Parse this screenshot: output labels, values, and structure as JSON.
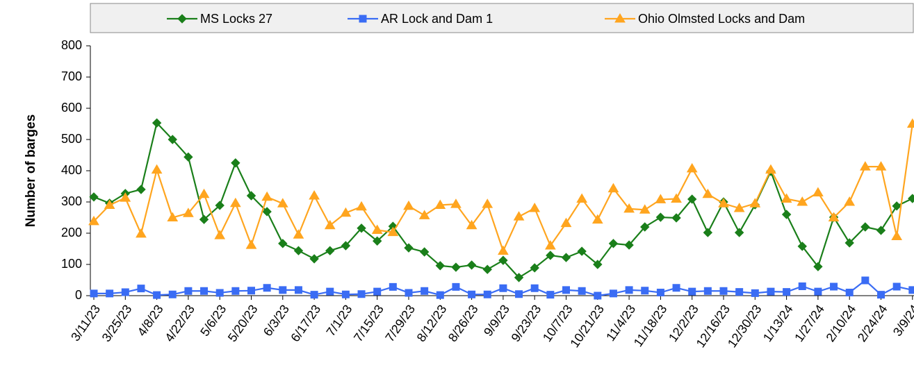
{
  "chart_data": {
    "type": "line",
    "y_label": "Number of barges",
    "categories": [
      "3/11/23",
      null,
      "3/25/23",
      null,
      "4/8/23",
      null,
      "4/22/23",
      null,
      "5/6/23",
      null,
      "5/20/23",
      null,
      "6/3/23",
      null,
      "6/17/23",
      null,
      "7/1/23",
      null,
      "7/15/23",
      null,
      "7/29/23",
      null,
      "8/12/23",
      null,
      "8/26/23",
      null,
      "9/9/23",
      null,
      "9/23/23",
      null,
      "10/7/23",
      null,
      "10/21/23",
      null,
      "11/4/23",
      null,
      "11/18/23",
      null,
      "12/2/23",
      null,
      "12/16/23",
      null,
      "12/30/23",
      null,
      "1/13/24",
      null,
      "1/27/24",
      null,
      "2/10/24",
      null,
      "2/24/24",
      null,
      "3/9/24"
    ],
    "series": [
      {
        "name": "MS Locks 27",
        "color": "#1a7f1a",
        "marker": "diamond",
        "values": [
          316,
          296,
          327,
          340,
          553,
          500,
          444,
          244,
          289,
          425,
          320,
          269,
          167,
          144,
          118,
          144,
          160,
          216,
          175,
          222,
          153,
          140,
          96,
          91,
          98,
          84,
          113,
          58,
          89,
          129,
          122,
          142,
          100,
          167,
          162,
          220,
          251,
          249,
          309,
          202,
          300,
          202,
          291,
          398,
          260,
          158,
          93,
          251,
          169,
          220,
          209,
          287,
          311
        ]
      },
      {
        "name": "AR Lock and Dam 1",
        "color": "#3a6cf4",
        "marker": "square",
        "values": [
          7,
          7,
          11,
          23,
          2,
          4,
          15,
          15,
          9,
          15,
          16,
          25,
          18,
          18,
          3,
          13,
          4,
          5,
          13,
          28,
          9,
          15,
          2,
          28,
          4,
          4,
          24,
          5,
          24,
          3,
          18,
          15,
          0,
          7,
          18,
          16,
          10,
          25,
          13,
          15,
          15,
          12,
          8,
          13,
          12,
          30,
          13,
          29,
          10,
          49,
          3,
          29,
          18
        ]
      },
      {
        "name": "Ohio Olmsted Locks and Dam",
        "color": "#ffa51f",
        "marker": "triangle",
        "values": [
          238,
          290,
          313,
          198,
          403,
          250,
          264,
          325,
          193,
          296,
          162,
          316,
          295,
          195,
          320,
          225,
          265,
          285,
          210,
          203,
          287,
          257,
          290,
          293,
          225,
          293,
          143,
          253,
          280,
          160,
          232,
          310,
          243,
          343,
          278,
          275,
          308,
          310,
          407,
          325,
          295,
          280,
          295,
          403,
          310,
          300,
          330,
          250,
          300,
          413,
          413,
          190,
          550
        ]
      }
    ],
    "ylim": [
      0,
      800
    ],
    "yticks": [
      0,
      100,
      200,
      300,
      400,
      500,
      600,
      700,
      800
    ],
    "grid": false
  }
}
